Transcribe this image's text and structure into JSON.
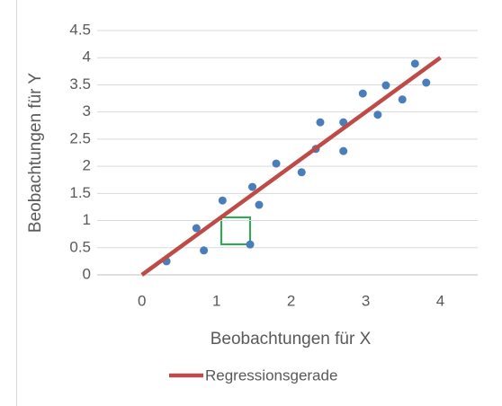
{
  "chart_data": {
    "type": "scatter",
    "x_label": "Beobachtungen für X",
    "y_label": "Beobachtungen für Y",
    "xlim": [
      -0.6,
      4.5
    ],
    "xticks": [
      0,
      1,
      2,
      3,
      4
    ],
    "ylim": [
      0,
      4.5
    ],
    "yticks": [
      0,
      0.5,
      1,
      1.5,
      2,
      2.5,
      3,
      3.5,
      4,
      4.5
    ],
    "grid": true,
    "legend": "bottom",
    "series": [
      {
        "color": "#4a7ebb",
        "x": [
          0.33,
          0.73,
          0.83,
          1.08,
          1.45,
          1.48,
          1.57,
          1.8,
          2.14,
          2.33,
          2.39,
          2.7,
          2.7,
          2.96,
          3.16,
          3.27,
          3.49,
          3.66,
          3.81
        ],
        "values": [
          0.25,
          0.86,
          0.45,
          1.37,
          0.56,
          1.62,
          1.29,
          2.05,
          1.89,
          2.32,
          2.81,
          2.81,
          2.28,
          3.34,
          2.95,
          3.49,
          3.23,
          3.89,
          3.54
        ]
      },
      {
        "name": "Regressionsgerade",
        "kind": "line",
        "color": "#be4b48",
        "x": [
          0,
          4
        ],
        "values": [
          0,
          4
        ]
      }
    ]
  }
}
